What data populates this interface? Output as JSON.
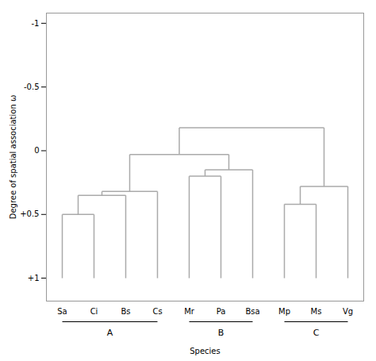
{
  "chart_data": {
    "type": "dendrogram",
    "categories": [
      "Sa",
      "Ci",
      "Bs",
      "Cs",
      "Mr",
      "Pa",
      "Bsa",
      "Mp",
      "Ms",
      "Vg"
    ],
    "leaf_height": 1,
    "tree": {
      "height": -0.18,
      "children": [
        {
          "height": 0.03,
          "children": [
            {
              "height": 0.32,
              "children": [
                {
                  "height": 0.35,
                  "children": [
                    {
                      "height": 0.5,
                      "children": [
                        "Sa",
                        "Ci"
                      ]
                    },
                    "Bs"
                  ]
                },
                "Cs"
              ]
            },
            {
              "height": 0.15,
              "children": [
                {
                  "height": 0.2,
                  "children": [
                    "Mr",
                    "Pa"
                  ]
                },
                "Bsa"
              ]
            }
          ]
        },
        {
          "height": 0.28,
          "children": [
            {
              "height": 0.42,
              "children": [
                "Mp",
                "Ms"
              ]
            },
            "Vg"
          ]
        }
      ]
    },
    "groups": [
      {
        "label": "A",
        "members": [
          "Sa",
          "Ci",
          "Bs",
          "Cs"
        ]
      },
      {
        "label": "B",
        "members": [
          "Mr",
          "Pa",
          "Bsa"
        ]
      },
      {
        "label": "C",
        "members": [
          "Mp",
          "Ms",
          "Vg"
        ]
      }
    ],
    "ylim": [
      1.18,
      -1.08
    ],
    "yticks": [
      -1,
      -0.5,
      0,
      {
        "value": 0.5,
        "label": "+0.5"
      },
      {
        "value": 1,
        "label": "+1"
      }
    ],
    "ylabel": "Degree of spatial association ω",
    "xlabel": "Species",
    "color": "#aaaaaa",
    "grid": false
  }
}
